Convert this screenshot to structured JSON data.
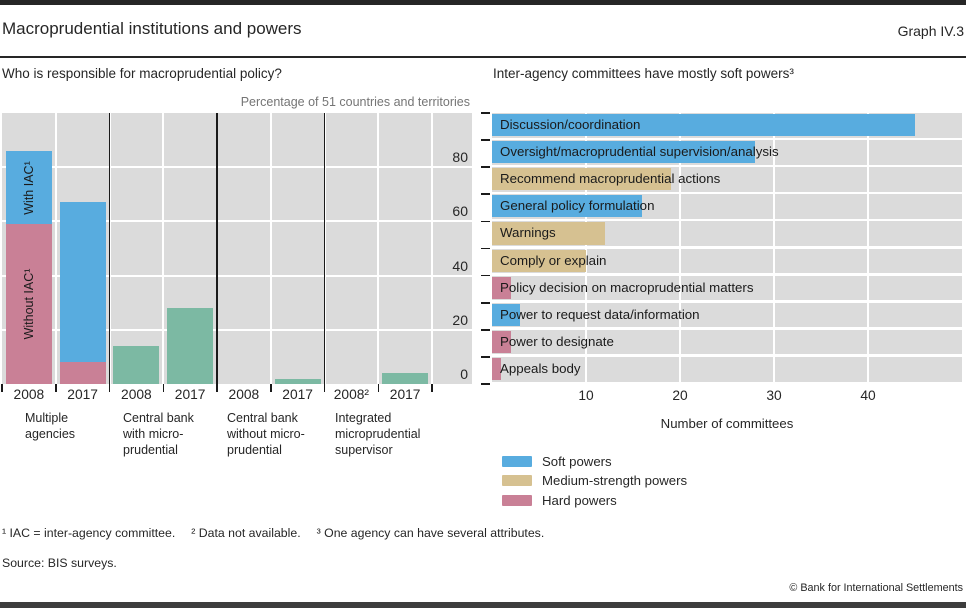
{
  "header": {
    "title": "Macroprudential institutions and powers",
    "graph_label": "Graph IV.3"
  },
  "colors": {
    "soft": "#58ACDF",
    "medium": "#D6C191",
    "hard": "#C98096",
    "green": "#7CB9A3",
    "plot_bg": "#DBDBDB",
    "line_black": "#1A1A1A"
  },
  "chart_data": [
    {
      "type": "bar",
      "title": "Who is responsible for macroprudential policy?",
      "subtitle": "Percentage of 51 countries and territories",
      "ylim": [
        0,
        100
      ],
      "y_ticks": [
        0,
        20,
        40,
        60,
        80
      ],
      "grid": "on",
      "groups": [
        "Multiple\nagencies",
        "Central bank\nwith micro-\nprudential",
        "Central bank\nwithout micro-\nprudential",
        "Integrated\nmicroprudential\nsupervisor"
      ],
      "bars": [
        {
          "x_label": "2008",
          "segments": [
            {
              "label": "Without IAC¹",
              "value": 59,
              "color_key": "hard"
            },
            {
              "label": "With IAC¹",
              "value": 27,
              "color_key": "soft"
            }
          ]
        },
        {
          "x_label": "2017",
          "segments": [
            {
              "value": 8,
              "color_key": "hard"
            },
            {
              "value": 59,
              "color_key": "soft"
            }
          ]
        },
        {
          "x_label": "2008",
          "segments": [
            {
              "value": 14,
              "color_key": "green"
            }
          ]
        },
        {
          "x_label": "2017",
          "segments": [
            {
              "value": 28,
              "color_key": "green"
            }
          ]
        },
        {
          "x_label": "2008",
          "segments": []
        },
        {
          "x_label": "2017",
          "segments": [
            {
              "value": 2,
              "color_key": "green"
            }
          ]
        },
        {
          "x_label": "2008²",
          "segments": []
        },
        {
          "x_label": "2017",
          "segments": [
            {
              "value": 4,
              "color_key": "green"
            }
          ]
        }
      ]
    },
    {
      "type": "bar-horizontal",
      "title": "Inter-agency committees have mostly soft powers³",
      "xlabel": "Number of committees",
      "xlim": [
        0,
        50
      ],
      "x_ticks": [
        10,
        20,
        30,
        40
      ],
      "grid": "on",
      "rows": [
        {
          "label": "Discussion/coordination",
          "value": 45,
          "power": "soft"
        },
        {
          "label": "Oversight/macroprudential supervision/analysis",
          "value": 28,
          "power": "soft"
        },
        {
          "label": "Recommend macroprudential actions",
          "value": 19,
          "power": "medium"
        },
        {
          "label": "General policy formulation",
          "value": 16,
          "power": "soft"
        },
        {
          "label": "Warnings",
          "value": 12,
          "power": "medium"
        },
        {
          "label": "Comply or explain",
          "value": 10,
          "power": "medium"
        },
        {
          "label": "Policy decision on macroprudential matters",
          "value": 2,
          "power": "hard"
        },
        {
          "label": "Power to request data/information",
          "value": 3,
          "power": "soft"
        },
        {
          "label": "Power to designate",
          "value": 2,
          "power": "hard"
        },
        {
          "label": "Appeals body",
          "value": 1,
          "power": "hard"
        }
      ],
      "legend": [
        {
          "label": "Soft powers",
          "color_key": "soft"
        },
        {
          "label": "Medium-strength powers",
          "color_key": "medium"
        },
        {
          "label": "Hard powers",
          "color_key": "hard"
        }
      ],
      "legend_position": "below"
    }
  ],
  "footnotes": [
    "¹ IAC = inter-agency committee.",
    "² Data not available.",
    "³ One agency can have several attributes."
  ],
  "source": "Source: BIS surveys.",
  "copyright": "© Bank for International Settlements"
}
